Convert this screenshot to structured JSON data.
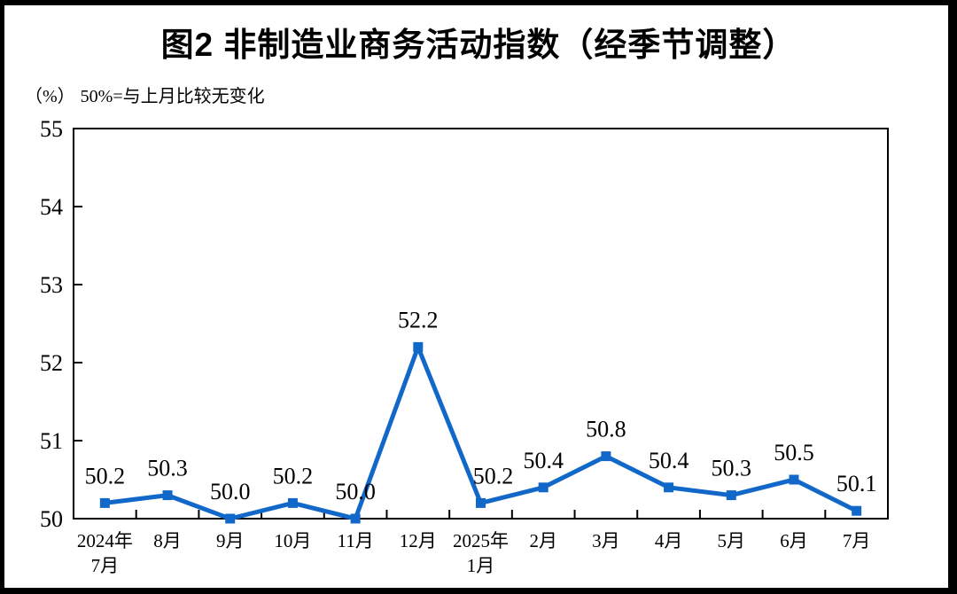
{
  "chart": {
    "title": "图2 非制造业商务活动指数（经季节调整）",
    "unit_label": "（%）",
    "note": "50%=与上月比较无变化"
  },
  "chart_data": {
    "type": "line",
    "title": "图2 非制造业商务活动指数（经季节调整）",
    "subtitle": "（%） 50%=与上月比较无变化",
    "categories": [
      "2024年\n7月",
      "8月",
      "9月",
      "10月",
      "11月",
      "12月",
      "2025年\n1月",
      "2月",
      "3月",
      "4月",
      "5月",
      "6月",
      "7月"
    ],
    "series": [
      {
        "name": "非制造业商务活动指数（经季节调整）",
        "values": [
          50.2,
          50.3,
          50.0,
          50.2,
          50.0,
          52.2,
          50.2,
          50.4,
          50.8,
          50.4,
          50.3,
          50.5,
          50.1
        ]
      }
    ],
    "data_labels": [
      "50.2",
      "50.3",
      "50.0",
      "50.2",
      "50.0",
      "52.2",
      "50.2",
      "50.4",
      "50.8",
      "50.4",
      "50.3",
      "50.5",
      "50.1"
    ],
    "xlabel": "",
    "ylabel": "%",
    "ylim": [
      50,
      55
    ],
    "yticks": [
      50,
      51,
      52,
      53,
      54,
      55
    ],
    "grid": false,
    "legend_position": "none",
    "line_color": "#1268C9",
    "marker": "square",
    "axis_color": "#000000"
  }
}
